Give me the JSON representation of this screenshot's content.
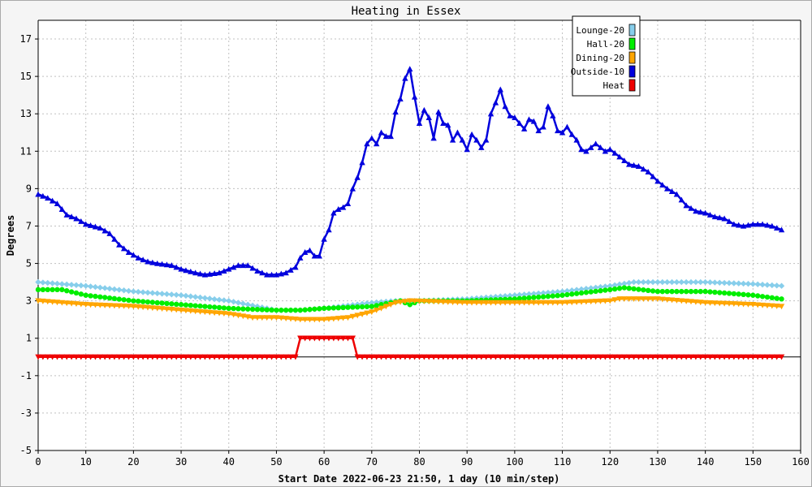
{
  "chart_data": {
    "type": "line",
    "title": "Heating in Essex",
    "xlabel": "Start Date 2022-06-23 21:50, 1 day (10 min/step)",
    "ylabel": "Degrees",
    "xlim": [
      0,
      160
    ],
    "ylim": [
      -5,
      18
    ],
    "x_ticks": [
      0,
      10,
      20,
      30,
      40,
      50,
      60,
      70,
      80,
      90,
      100,
      110,
      120,
      130,
      140,
      150,
      160
    ],
    "y_ticks": [
      -5,
      -3,
      -1,
      1,
      3,
      5,
      7,
      9,
      11,
      13,
      15,
      17
    ],
    "grid": true,
    "legend_position": "top-right",
    "series": [
      {
        "name": "Lounge-20",
        "color": "#87ceeb",
        "marker": "diamond",
        "points": [
          [
            0,
            4.0
          ],
          [
            10,
            3.8
          ],
          [
            20,
            3.5
          ],
          [
            30,
            3.3
          ],
          [
            40,
            3.0
          ],
          [
            50,
            2.5
          ],
          [
            55,
            2.5
          ],
          [
            60,
            2.6
          ],
          [
            70,
            2.9
          ],
          [
            75,
            3.0
          ],
          [
            80,
            3.0
          ],
          [
            90,
            3.1
          ],
          [
            100,
            3.3
          ],
          [
            110,
            3.5
          ],
          [
            120,
            3.8
          ],
          [
            125,
            4.0
          ],
          [
            130,
            4.0
          ],
          [
            140,
            4.0
          ],
          [
            150,
            3.9
          ],
          [
            156,
            3.8
          ]
        ]
      },
      {
        "name": "Hall-20",
        "color": "#00ee00",
        "marker": "circle",
        "points": [
          [
            0,
            3.6
          ],
          [
            5,
            3.6
          ],
          [
            10,
            3.3
          ],
          [
            20,
            3.0
          ],
          [
            30,
            2.8
          ],
          [
            40,
            2.6
          ],
          [
            50,
            2.5
          ],
          [
            55,
            2.5
          ],
          [
            60,
            2.6
          ],
          [
            70,
            2.7
          ],
          [
            76,
            3.0
          ],
          [
            78,
            2.8
          ],
          [
            80,
            3.0
          ],
          [
            90,
            3.0
          ],
          [
            100,
            3.1
          ],
          [
            110,
            3.3
          ],
          [
            120,
            3.6
          ],
          [
            123,
            3.7
          ],
          [
            130,
            3.5
          ],
          [
            140,
            3.5
          ],
          [
            150,
            3.3
          ],
          [
            156,
            3.1
          ]
        ]
      },
      {
        "name": "Dining-20",
        "color": "#ffa500",
        "marker": "triangle-down",
        "points": [
          [
            0,
            3.0
          ],
          [
            10,
            2.8
          ],
          [
            20,
            2.7
          ],
          [
            30,
            2.5
          ],
          [
            40,
            2.3
          ],
          [
            45,
            2.1
          ],
          [
            50,
            2.1
          ],
          [
            55,
            2.0
          ],
          [
            60,
            2.0
          ],
          [
            65,
            2.1
          ],
          [
            70,
            2.4
          ],
          [
            75,
            2.9
          ],
          [
            78,
            3.0
          ],
          [
            90,
            2.9
          ],
          [
            100,
            2.9
          ],
          [
            110,
            2.9
          ],
          [
            120,
            3.0
          ],
          [
            122,
            3.1
          ],
          [
            130,
            3.1
          ],
          [
            140,
            2.9
          ],
          [
            150,
            2.8
          ],
          [
            156,
            2.7
          ]
        ]
      },
      {
        "name": "Outside-10",
        "color": "#0000dd",
        "marker": "triangle-up",
        "points": [
          [
            0,
            8.7
          ],
          [
            2,
            8.5
          ],
          [
            4,
            8.2
          ],
          [
            6,
            7.6
          ],
          [
            8,
            7.4
          ],
          [
            10,
            7.1
          ],
          [
            13,
            6.9
          ],
          [
            15,
            6.6
          ],
          [
            17,
            6.0
          ],
          [
            19,
            5.6
          ],
          [
            21,
            5.3
          ],
          [
            23,
            5.1
          ],
          [
            25,
            5.0
          ],
          [
            28,
            4.9
          ],
          [
            30,
            4.7
          ],
          [
            33,
            4.5
          ],
          [
            35,
            4.4
          ],
          [
            38,
            4.5
          ],
          [
            40,
            4.7
          ],
          [
            42,
            4.9
          ],
          [
            44,
            4.9
          ],
          [
            46,
            4.6
          ],
          [
            48,
            4.4
          ],
          [
            50,
            4.4
          ],
          [
            52,
            4.5
          ],
          [
            54,
            4.8
          ],
          [
            55,
            5.3
          ],
          [
            56,
            5.6
          ],
          [
            57,
            5.7
          ],
          [
            58,
            5.4
          ],
          [
            59,
            5.4
          ],
          [
            60,
            6.3
          ],
          [
            61,
            6.8
          ],
          [
            62,
            7.7
          ],
          [
            63,
            7.9
          ],
          [
            64,
            8.0
          ],
          [
            65,
            8.2
          ],
          [
            66,
            9.0
          ],
          [
            67,
            9.6
          ],
          [
            68,
            10.4
          ],
          [
            69,
            11.4
          ],
          [
            70,
            11.7
          ],
          [
            71,
            11.4
          ],
          [
            72,
            12.0
          ],
          [
            73,
            11.8
          ],
          [
            74,
            11.8
          ],
          [
            75,
            13.1
          ],
          [
            76,
            13.8
          ],
          [
            77,
            14.9
          ],
          [
            78,
            15.4
          ],
          [
            79,
            13.9
          ],
          [
            80,
            12.5
          ],
          [
            81,
            13.2
          ],
          [
            82,
            12.8
          ],
          [
            83,
            11.7
          ],
          [
            84,
            13.1
          ],
          [
            85,
            12.5
          ],
          [
            86,
            12.4
          ],
          [
            87,
            11.6
          ],
          [
            88,
            12.0
          ],
          [
            89,
            11.6
          ],
          [
            90,
            11.1
          ],
          [
            91,
            11.9
          ],
          [
            92,
            11.6
          ],
          [
            93,
            11.2
          ],
          [
            94,
            11.6
          ],
          [
            95,
            13.0
          ],
          [
            96,
            13.6
          ],
          [
            97,
            14.3
          ],
          [
            98,
            13.4
          ],
          [
            99,
            12.9
          ],
          [
            100,
            12.8
          ],
          [
            101,
            12.5
          ],
          [
            102,
            12.2
          ],
          [
            103,
            12.7
          ],
          [
            104,
            12.6
          ],
          [
            105,
            12.1
          ],
          [
            106,
            12.3
          ],
          [
            107,
            13.4
          ],
          [
            108,
            12.9
          ],
          [
            109,
            12.1
          ],
          [
            110,
            12.0
          ],
          [
            111,
            12.3
          ],
          [
            112,
            11.9
          ],
          [
            113,
            11.6
          ],
          [
            114,
            11.1
          ],
          [
            115,
            11.0
          ],
          [
            117,
            11.4
          ],
          [
            119,
            11.0
          ],
          [
            120,
            11.1
          ],
          [
            122,
            10.7
          ],
          [
            124,
            10.3
          ],
          [
            126,
            10.2
          ],
          [
            128,
            9.9
          ],
          [
            130,
            9.4
          ],
          [
            132,
            9.0
          ],
          [
            134,
            8.7
          ],
          [
            136,
            8.1
          ],
          [
            138,
            7.8
          ],
          [
            140,
            7.7
          ],
          [
            142,
            7.5
          ],
          [
            144,
            7.4
          ],
          [
            146,
            7.1
          ],
          [
            148,
            7.0
          ],
          [
            150,
            7.1
          ],
          [
            152,
            7.1
          ],
          [
            154,
            7.0
          ],
          [
            156,
            6.8
          ]
        ]
      },
      {
        "name": "Heat",
        "color": "#ee0000",
        "marker": "triangle-down",
        "points": [
          [
            0,
            0
          ],
          [
            54,
            0
          ],
          [
            55,
            1
          ],
          [
            66,
            1
          ],
          [
            67,
            0
          ],
          [
            156,
            0
          ]
        ]
      }
    ]
  }
}
